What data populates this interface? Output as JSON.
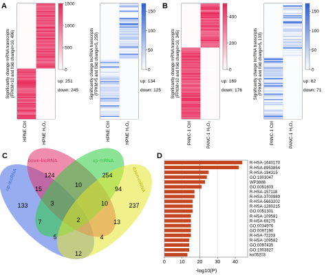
{
  "panels": {
    "A": {
      "letter": "A",
      "heatmap1": {
        "ylabel_line1": "Significantly change mRNA transcripts",
        "ylabel_line2": "(FPKM>10 and fold change>10, 496)",
        "col1": "HPNE Ctrl",
        "col2": "HPNE H₂O₂",
        "up": "up: 251",
        "down": "down: 245",
        "scale_ticks": [
          "1500",
          "1000",
          "500",
          "0"
        ],
        "scale_values": [
          1500,
          1000,
          500,
          0
        ],
        "scale_max": 1500,
        "color": "#e8285a",
        "split": 0.56
      },
      "heatmap2": {
        "ylabel_line1": "Significantly change lncRNA transcripts",
        "ylabel_line2": "(FPKM>5 and fold change>5, 259)",
        "col1": "HPNE Ctrl",
        "col2": "HPNE H₂O₂",
        "up": "up: 134",
        "down": "down: 125",
        "scale_ticks": [
          "150",
          "100",
          "50",
          "0"
        ],
        "scale_values": [
          150,
          100,
          50,
          0
        ],
        "scale_max": 170,
        "color": "#2c62d9",
        "split": 0.48
      }
    },
    "B": {
      "letter": "B",
      "heatmap1": {
        "ylabel_line1": "Significantly change mRNA transcripts",
        "ylabel_line2": "(FPKM>10 and fold change>10, 345)",
        "col1": "PANC-1 Ctrl",
        "col2": "PANC-1 H₂O₂",
        "up": "up: 169",
        "down": "down: 176",
        "scale_ticks": [
          "400",
          "200",
          "0"
        ],
        "scale_values": [
          400,
          200,
          0
        ],
        "scale_max": 500,
        "color": "#e8285a",
        "split": 0.38
      },
      "heatmap2": {
        "ylabel_line1": "Significantly change lncRNA transcripts",
        "ylabel_line2": "(FPKM>5 and fold change>5, 133)",
        "col1": "PANC-1 Ctrl",
        "col2": "PANC-1 H₂O₂",
        "up": "up: 62",
        "down": "down: 71",
        "scale_ticks": [
          "150",
          "100",
          "50",
          "0"
        ],
        "scale_values": [
          150,
          100,
          50,
          0
        ],
        "scale_max": 170,
        "color": "#2c62d9",
        "split": 0.46
      }
    },
    "C": {
      "letter": "C",
      "set_labels": [
        "up-lncRNA",
        "down-lncRNA",
        "up-mRNA",
        "down-mRNA"
      ],
      "set_colors": [
        "#4169e1",
        "#e0306a",
        "#2ecc40",
        "#e6e62c"
      ],
      "counts": [
        {
          "label": "133",
          "x": 133,
          "y": 0
        },
        {
          "label": "124",
          "x": 124,
          "y": 0
        },
        {
          "label": "254",
          "x": 254,
          "y": 0
        },
        {
          "label": "237",
          "x": 237,
          "y": 0
        },
        {
          "label": "15",
          "x": 15,
          "y": 0
        },
        {
          "label": "10",
          "x": 10,
          "y": 0
        },
        {
          "label": "94",
          "x": 94,
          "y": 0
        },
        {
          "label": "3",
          "x": 3,
          "y": 0
        },
        {
          "label": "10",
          "x": 10,
          "y": 0
        },
        {
          "label": "7",
          "x": 7,
          "y": 0
        },
        {
          "label": "2",
          "x": 2,
          "y": 0
        },
        {
          "label": "13",
          "x": 13,
          "y": 0
        },
        {
          "label": "5",
          "x": 5,
          "y": 0
        },
        {
          "label": "4",
          "x": 4,
          "y": 0
        },
        {
          "label": "12",
          "x": 12,
          "y": 0
        }
      ]
    },
    "D": {
      "letter": "D",
      "chart_data": {
        "type": "bar",
        "orientation": "horizontal",
        "categories": [
          "R-HSA-1640170",
          "R-HSA-8953854",
          "R-HSA-194315",
          "GO:1903047",
          "WP3888",
          "GO:0051603",
          "R-HSA-157118",
          "R-HSA-3700989",
          "R-HSA-5663202",
          "R-HSA-1280215",
          "GO:0051301",
          "R-HSA-109581",
          "R-HSA-69275",
          "GO:0034976",
          "GO:0097190",
          "R-HSA-72203",
          "R-HSA-109582",
          "GO:0097435",
          "GO:1903827",
          "ko05203"
        ],
        "values": [
          44,
          42,
          25,
          24,
          23,
          21,
          17,
          17,
          16,
          16,
          16,
          15,
          15,
          15,
          15,
          15,
          14,
          14,
          14,
          13
        ],
        "xlabel": "-log10(P)",
        "xticks": [
          0,
          10,
          20,
          30,
          40
        ],
        "xlim": [
          0,
          47
        ],
        "bar_color": "#c4441f",
        "vline": 20,
        "grid": true
      }
    }
  }
}
